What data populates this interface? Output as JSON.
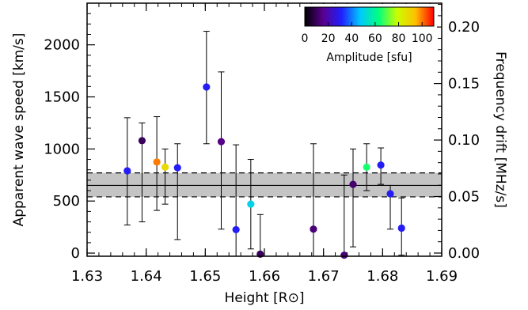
{
  "chart_data": {
    "type": "scatter",
    "xlabel": "Height [R⊙]",
    "ylabel": "Apparent wave speed [km/s]",
    "y2label": "Frequency drift [MHz/s]",
    "xlim": [
      1.63,
      1.69
    ],
    "ylim": [
      -30,
      2400
    ],
    "y2lim": [
      -0.0028,
      0.2211
    ],
    "x_ticks": [
      1.63,
      1.64,
      1.65,
      1.66,
      1.67,
      1.68,
      1.69
    ],
    "x_tick_labels": [
      "1.63",
      "1.64",
      "1.65",
      "1.66",
      "1.67",
      "1.68",
      "1.69"
    ],
    "y_ticks": [
      0,
      500,
      1000,
      1500,
      2000
    ],
    "y_tick_labels": [
      "0",
      "500",
      "1000",
      "1500",
      "2000"
    ],
    "y2_ticks": [
      0.0,
      0.05,
      0.1,
      0.15,
      0.2
    ],
    "y2_tick_labels": [
      "0.00",
      "0.05",
      "0.10",
      "0.15",
      "0.20"
    ],
    "band": {
      "center": 650,
      "low": 540,
      "high": 770
    },
    "colorbar": {
      "label": "Amplitude [sfu]",
      "range": [
        0,
        110
      ],
      "ticks": [
        0,
        20,
        40,
        60,
        80,
        100
      ],
      "tick_labels": [
        "0",
        "20",
        "40",
        "60",
        "80",
        "100"
      ],
      "colors": [
        "#000000",
        "#5a0090",
        "#2020ff",
        "#00c8ff",
        "#00ff80",
        "#c8ff00",
        "#ffc000",
        "#ff0000"
      ]
    },
    "points": [
      {
        "x": 1.6368,
        "y": 790,
        "ylow": 270,
        "yhigh": 1300,
        "amplitude": 30
      },
      {
        "x": 1.6393,
        "y": 1080,
        "ylow": 300,
        "yhigh": 1250,
        "amplitude": 10
      },
      {
        "x": 1.6418,
        "y": 875,
        "ylow": 410,
        "yhigh": 1310,
        "amplitude": 100
      },
      {
        "x": 1.6432,
        "y": 825,
        "ylow": 470,
        "yhigh": 1000,
        "amplitude": 88
      },
      {
        "x": 1.6453,
        "y": 820,
        "ylow": 130,
        "yhigh": 1050,
        "amplitude": 30
      },
      {
        "x": 1.6502,
        "y": 1595,
        "ylow": 1050,
        "yhigh": 2130,
        "amplitude": 30
      },
      {
        "x": 1.6527,
        "y": 1070,
        "ylow": 230,
        "yhigh": 1740,
        "amplitude": 15
      },
      {
        "x": 1.6552,
        "y": 225,
        "ylow": -30,
        "yhigh": 1040,
        "amplitude": 30
      },
      {
        "x": 1.6577,
        "y": 470,
        "ylow": 40,
        "yhigh": 900,
        "amplitude": 50
      },
      {
        "x": 1.6593,
        "y": -10,
        "ylow": -30,
        "yhigh": 370,
        "amplitude": 10
      },
      {
        "x": 1.6683,
        "y": 230,
        "ylow": -30,
        "yhigh": 1050,
        "amplitude": 13
      },
      {
        "x": 1.6735,
        "y": -20,
        "ylow": -30,
        "yhigh": 750,
        "amplitude": 13
      },
      {
        "x": 1.675,
        "y": 660,
        "ylow": 60,
        "yhigh": 1000,
        "amplitude": 12
      },
      {
        "x": 1.6773,
        "y": 825,
        "ylow": 600,
        "yhigh": 1050,
        "amplitude": 65
      },
      {
        "x": 1.6797,
        "y": 845,
        "ylow": 660,
        "yhigh": 1010,
        "amplitude": 30
      },
      {
        "x": 1.6813,
        "y": 570,
        "ylow": 230,
        "yhigh": 650,
        "amplitude": 30
      },
      {
        "x": 1.6832,
        "y": 240,
        "ylow": -20,
        "yhigh": 530,
        "amplitude": 30
      }
    ]
  }
}
